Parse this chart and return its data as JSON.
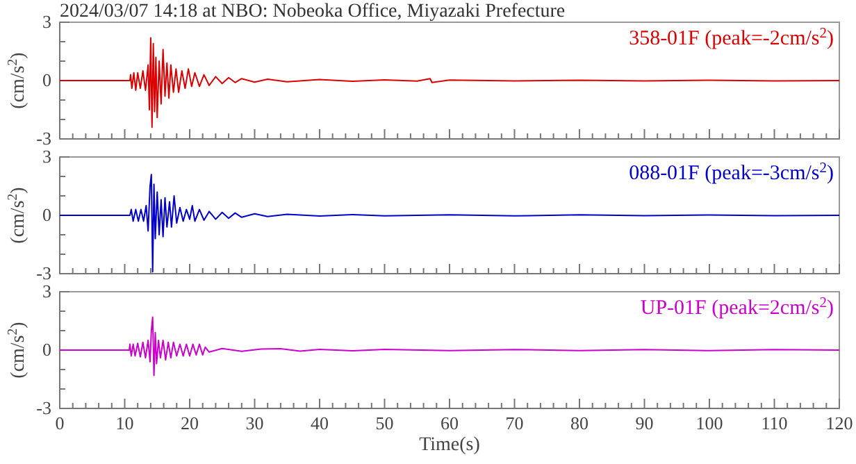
{
  "chart_data": [
    {
      "type": "line",
      "title": "2024/03/07 14:18 at NBO: Nobeoka Office, Miyazaki Prefecture",
      "ylabel": "(cm/s$^{2}$)",
      "annotations": [
        "358-01F (peak=-2cm/s$^{2}$)"
      ],
      "tick_labels": "y",
      "xlim": [
        0,
        120
      ],
      "ylim": [
        -3,
        3
      ],
      "xticks": [
        0,
        {
          "value": 2,
          "label": null
        },
        {
          "value": 4,
          "label": null
        },
        {
          "value": 6,
          "label": null
        },
        {
          "value": 8,
          "label": null
        },
        10,
        {
          "value": 12,
          "label": null
        },
        {
          "value": 14,
          "label": null
        },
        {
          "value": 16,
          "label": null
        },
        {
          "value": 18,
          "label": null
        },
        20,
        {
          "value": 22,
          "label": null
        },
        {
          "value": 24,
          "label": null
        },
        {
          "value": 26,
          "label": null
        },
        {
          "value": 28,
          "label": null
        },
        30,
        {
          "value": 32,
          "label": null
        },
        {
          "value": 34,
          "label": null
        },
        {
          "value": 36,
          "label": null
        },
        {
          "value": 38,
          "label": null
        },
        40,
        {
          "value": 42,
          "label": null
        },
        {
          "value": 44,
          "label": null
        },
        {
          "value": 46,
          "label": null
        },
        {
          "value": 48,
          "label": null
        },
        50,
        {
          "value": 52,
          "label": null
        },
        {
          "value": 54,
          "label": null
        },
        {
          "value": 56,
          "label": null
        },
        {
          "value": 58,
          "label": null
        },
        60,
        {
          "value": 62,
          "label": null
        },
        {
          "value": 64,
          "label": null
        },
        {
          "value": 66,
          "label": null
        },
        {
          "value": 68,
          "label": null
        },
        70,
        {
          "value": 72,
          "label": null
        },
        {
          "value": 74,
          "label": null
        },
        {
          "value": 76,
          "label": null
        },
        {
          "value": 78,
          "label": null
        },
        80,
        {
          "value": 82,
          "label": null
        },
        {
          "value": 84,
          "label": null
        },
        {
          "value": 86,
          "label": null
        },
        {
          "value": 88,
          "label": null
        },
        90,
        {
          "value": 92,
          "label": null
        },
        {
          "value": 94,
          "label": null
        },
        {
          "value": 96,
          "label": null
        },
        {
          "value": 98,
          "label": null
        },
        100,
        {
          "value": 102,
          "label": null
        },
        {
          "value": 104,
          "label": null
        },
        {
          "value": 106,
          "label": null
        },
        {
          "value": 108,
          "label": null
        },
        110,
        {
          "value": 112,
          "label": null
        },
        {
          "value": 114,
          "label": null
        },
        {
          "value": 116,
          "label": null
        },
        {
          "value": 118,
          "label": null
        },
        120
      ],
      "yticks": [
        -3,
        {
          "value": -2,
          "label": null
        },
        {
          "value": -1,
          "label": null
        },
        0,
        {
          "value": 1,
          "label": null
        },
        {
          "value": 2,
          "label": null
        },
        3
      ],
      "series": [
        {
          "color": "#dd0000",
          "x": [
            0,
            10.8,
            10.9,
            11.1,
            11.4,
            11.7,
            12.0,
            12.4,
            12.8,
            13.2,
            13.6,
            13.8,
            14.0,
            14.2,
            14.4,
            14.6,
            14.8,
            15.0,
            15.3,
            15.6,
            15.9,
            16.2,
            16.5,
            16.8,
            17.1,
            17.5,
            17.9,
            18.3,
            18.8,
            19.3,
            19.8,
            20.3,
            20.8,
            21.5,
            22.2,
            23,
            24,
            25,
            26,
            27,
            28,
            30,
            32,
            35,
            40,
            45,
            50,
            55,
            57,
            57.3,
            60,
            70,
            80,
            90,
            100,
            110,
            120
          ],
          "values": [
            0,
            0,
            0.3,
            -0.4,
            0.4,
            -0.5,
            0.4,
            -0.4,
            0.5,
            -0.5,
            0.8,
            -1.5,
            2.2,
            -2.4,
            1.9,
            -1.6,
            1.2,
            -1.9,
            1.0,
            -1.2,
            1.6,
            -0.8,
            0.9,
            -0.9,
            0.8,
            -0.6,
            0.6,
            -0.6,
            0.5,
            -0.4,
            0.6,
            -0.3,
            0.4,
            -0.3,
            0.3,
            -0.25,
            0.2,
            -0.15,
            0.15,
            -0.1,
            0.1,
            -0.08,
            0.07,
            -0.06,
            0.05,
            -0.04,
            0.04,
            -0.03,
            0.1,
            -0.1,
            0.03,
            -0.02,
            0.02,
            -0.02,
            0.02,
            -0.02,
            0
          ]
        }
      ]
    },
    {
      "type": "line",
      "ylabel": "(cm/s$^{2}$)",
      "annotations": [
        "088-01F (peak=-3cm/s$^{2}$)"
      ],
      "tick_labels": "y",
      "xlim": [
        0,
        120
      ],
      "ylim": [
        -3,
        3
      ],
      "xticks": [
        0,
        {
          "value": 2,
          "label": null
        },
        {
          "value": 4,
          "label": null
        },
        {
          "value": 6,
          "label": null
        },
        {
          "value": 8,
          "label": null
        },
        10,
        {
          "value": 12,
          "label": null
        },
        {
          "value": 14,
          "label": null
        },
        {
          "value": 16,
          "label": null
        },
        {
          "value": 18,
          "label": null
        },
        20,
        {
          "value": 22,
          "label": null
        },
        {
          "value": 24,
          "label": null
        },
        {
          "value": 26,
          "label": null
        },
        {
          "value": 28,
          "label": null
        },
        30,
        {
          "value": 32,
          "label": null
        },
        {
          "value": 34,
          "label": null
        },
        {
          "value": 36,
          "label": null
        },
        {
          "value": 38,
          "label": null
        },
        40,
        {
          "value": 42,
          "label": null
        },
        {
          "value": 44,
          "label": null
        },
        {
          "value": 46,
          "label": null
        },
        {
          "value": 48,
          "label": null
        },
        50,
        {
          "value": 52,
          "label": null
        },
        {
          "value": 54,
          "label": null
        },
        {
          "value": 56,
          "label": null
        },
        {
          "value": 58,
          "label": null
        },
        60,
        {
          "value": 62,
          "label": null
        },
        {
          "value": 64,
          "label": null
        },
        {
          "value": 66,
          "label": null
        },
        {
          "value": 68,
          "label": null
        },
        70,
        {
          "value": 72,
          "label": null
        },
        {
          "value": 74,
          "label": null
        },
        {
          "value": 76,
          "label": null
        },
        {
          "value": 78,
          "label": null
        },
        80,
        {
          "value": 82,
          "label": null
        },
        {
          "value": 84,
          "label": null
        },
        {
          "value": 86,
          "label": null
        },
        {
          "value": 88,
          "label": null
        },
        90,
        {
          "value": 92,
          "label": null
        },
        {
          "value": 94,
          "label": null
        },
        {
          "value": 96,
          "label": null
        },
        {
          "value": 98,
          "label": null
        },
        100,
        {
          "value": 102,
          "label": null
        },
        {
          "value": 104,
          "label": null
        },
        {
          "value": 106,
          "label": null
        },
        {
          "value": 108,
          "label": null
        },
        110,
        {
          "value": 112,
          "label": null
        },
        {
          "value": 114,
          "label": null
        },
        {
          "value": 116,
          "label": null
        },
        {
          "value": 118,
          "label": null
        },
        120
      ],
      "yticks": [
        -3,
        {
          "value": -2,
          "label": null
        },
        {
          "value": -1,
          "label": null
        },
        0,
        {
          "value": 1,
          "label": null
        },
        {
          "value": 2,
          "label": null
        },
        3
      ],
      "series": [
        {
          "color": "#0000cc",
          "x": [
            0,
            10.8,
            11,
            11.3,
            11.7,
            12.1,
            12.5,
            12.9,
            13.3,
            13.6,
            13.9,
            14.1,
            14.3,
            14.5,
            14.7,
            15.0,
            15.3,
            15.6,
            15.9,
            16.2,
            16.5,
            16.9,
            17.2,
            17.6,
            18.0,
            18.5,
            19.0,
            19.5,
            20,
            20.4,
            20.8,
            21.5,
            22.2,
            23,
            24,
            25,
            26,
            27,
            28,
            30,
            32,
            35,
            40,
            45,
            50,
            60,
            70,
            80,
            90,
            100,
            110,
            120
          ],
          "values": [
            0,
            0,
            0.3,
            -0.3,
            0.3,
            -0.3,
            0.3,
            -0.3,
            0.5,
            -0.8,
            1.5,
            2.1,
            -2.9,
            1.6,
            -1.2,
            1.2,
            -1.0,
            0.8,
            -1.1,
            0.9,
            -0.6,
            0.7,
            -0.6,
            1.0,
            -0.4,
            0.4,
            -0.3,
            0.3,
            -0.2,
            0.5,
            -0.3,
            0.3,
            -0.25,
            0.2,
            -0.2,
            0.15,
            -0.15,
            0.12,
            -0.1,
            0.08,
            -0.06,
            0.05,
            -0.04,
            0.04,
            -0.03,
            0.03,
            -0.03,
            0.03,
            -0.02,
            0.02,
            -0.02,
            0
          ]
        }
      ]
    },
    {
      "type": "line",
      "ylabel": "(cm/s$^{2}$)",
      "xlabel": "Time(s)",
      "annotations": [
        "UP-01F (peak=2cm/s$^{2}$)"
      ],
      "xlim": [
        0,
        120
      ],
      "ylim": [
        -3,
        3
      ],
      "xticks": [
        0,
        {
          "value": 2,
          "label": null
        },
        {
          "value": 4,
          "label": null
        },
        {
          "value": 6,
          "label": null
        },
        {
          "value": 8,
          "label": null
        },
        10,
        {
          "value": 12,
          "label": null
        },
        {
          "value": 14,
          "label": null
        },
        {
          "value": 16,
          "label": null
        },
        {
          "value": 18,
          "label": null
        },
        20,
        {
          "value": 22,
          "label": null
        },
        {
          "value": 24,
          "label": null
        },
        {
          "value": 26,
          "label": null
        },
        {
          "value": 28,
          "label": null
        },
        30,
        {
          "value": 32,
          "label": null
        },
        {
          "value": 34,
          "label": null
        },
        {
          "value": 36,
          "label": null
        },
        {
          "value": 38,
          "label": null
        },
        40,
        {
          "value": 42,
          "label": null
        },
        {
          "value": 44,
          "label": null
        },
        {
          "value": 46,
          "label": null
        },
        {
          "value": 48,
          "label": null
        },
        50,
        {
          "value": 52,
          "label": null
        },
        {
          "value": 54,
          "label": null
        },
        {
          "value": 56,
          "label": null
        },
        {
          "value": 58,
          "label": null
        },
        60,
        {
          "value": 62,
          "label": null
        },
        {
          "value": 64,
          "label": null
        },
        {
          "value": 66,
          "label": null
        },
        {
          "value": 68,
          "label": null
        },
        70,
        {
          "value": 72,
          "label": null
        },
        {
          "value": 74,
          "label": null
        },
        {
          "value": 76,
          "label": null
        },
        {
          "value": 78,
          "label": null
        },
        80,
        {
          "value": 82,
          "label": null
        },
        {
          "value": 84,
          "label": null
        },
        {
          "value": 86,
          "label": null
        },
        {
          "value": 88,
          "label": null
        },
        90,
        {
          "value": 92,
          "label": null
        },
        {
          "value": 94,
          "label": null
        },
        {
          "value": 96,
          "label": null
        },
        {
          "value": 98,
          "label": null
        },
        100,
        {
          "value": 102,
          "label": null
        },
        {
          "value": 104,
          "label": null
        },
        {
          "value": 106,
          "label": null
        },
        {
          "value": 108,
          "label": null
        },
        110,
        {
          "value": 112,
          "label": null
        },
        {
          "value": 114,
          "label": null
        },
        {
          "value": 116,
          "label": null
        },
        {
          "value": 118,
          "label": null
        },
        120
      ],
      "yticks": [
        -3,
        {
          "value": -2,
          "label": null
        },
        {
          "value": -1,
          "label": null
        },
        0,
        {
          "value": 1,
          "label": null
        },
        {
          "value": 2,
          "label": null
        },
        3
      ],
      "series": [
        {
          "color": "#cc00cc",
          "x": [
            0,
            10.7,
            10.8,
            11.0,
            11.3,
            11.6,
            12,
            12.4,
            12.8,
            13.2,
            13.6,
            13.9,
            14.1,
            14.3,
            14.5,
            14.7,
            14.9,
            15.2,
            15.5,
            15.9,
            16.3,
            16.7,
            17.1,
            17.5,
            18.0,
            18.5,
            19.0,
            19.5,
            20.0,
            20.5,
            21,
            21.5,
            22,
            22.4,
            23,
            25,
            28,
            31,
            34,
            37,
            40,
            45,
            50,
            60,
            70,
            80,
            90,
            100,
            110,
            120
          ],
          "values": [
            0,
            0,
            0.3,
            -0.3,
            0.3,
            -0.3,
            0.35,
            -0.35,
            0.4,
            -0.4,
            0.5,
            -0.6,
            1.0,
            1.7,
            -1.3,
            0.9,
            -0.7,
            0.5,
            -0.4,
            0.5,
            -0.5,
            0.4,
            -0.4,
            0.4,
            -0.3,
            0.3,
            -0.3,
            0.3,
            -0.3,
            0.3,
            -0.25,
            0.3,
            -0.25,
            0.15,
            -0.1,
            0.08,
            -0.06,
            0.05,
            0.07,
            -0.05,
            0.04,
            -0.04,
            0.04,
            -0.03,
            0.03,
            -0.03,
            0.03,
            -0.03,
            0.03,
            0
          ]
        }
      ]
    }
  ]
}
